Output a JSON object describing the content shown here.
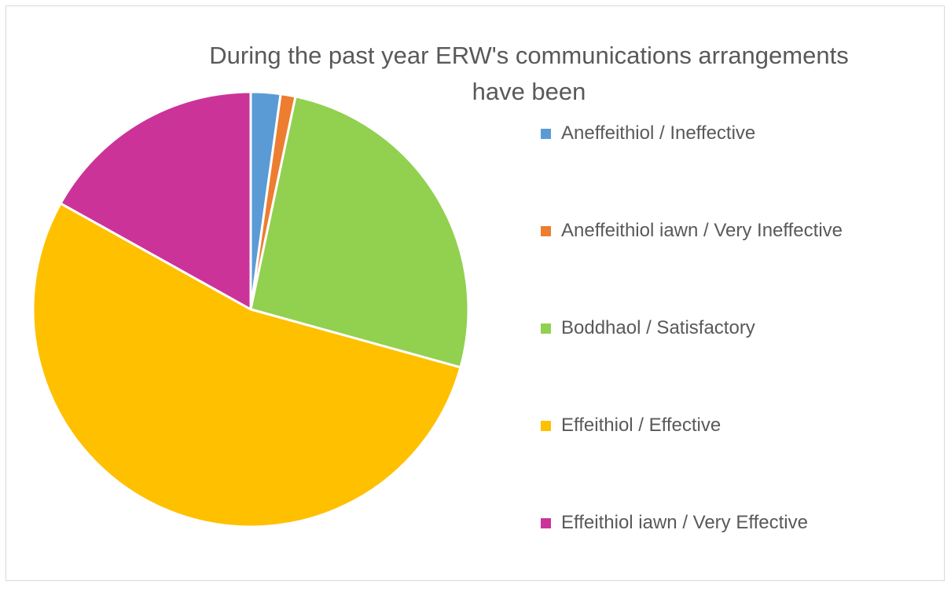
{
  "chart_data": {
    "type": "pie",
    "title_lines": [
      "During the past year ERW's communications arrangements",
      "have been"
    ],
    "categories": [
      "Aneffeithiol / Ineffective",
      "Aneffeithiol iawn / Very Ineffective",
      "Boddhaol / Satisfactory",
      "Effeithiol / Effective",
      "Effeithiol iawn / Very Effective"
    ],
    "values": [
      2.2,
      1.1,
      26.0,
      53.8,
      16.9
    ],
    "colors": [
      "#5b9bd5",
      "#ed7d31",
      "#92d050",
      "#ffc000",
      "#cc3399"
    ],
    "start_angle_deg": 0,
    "direction": "clockwise",
    "legend_position": "right"
  }
}
